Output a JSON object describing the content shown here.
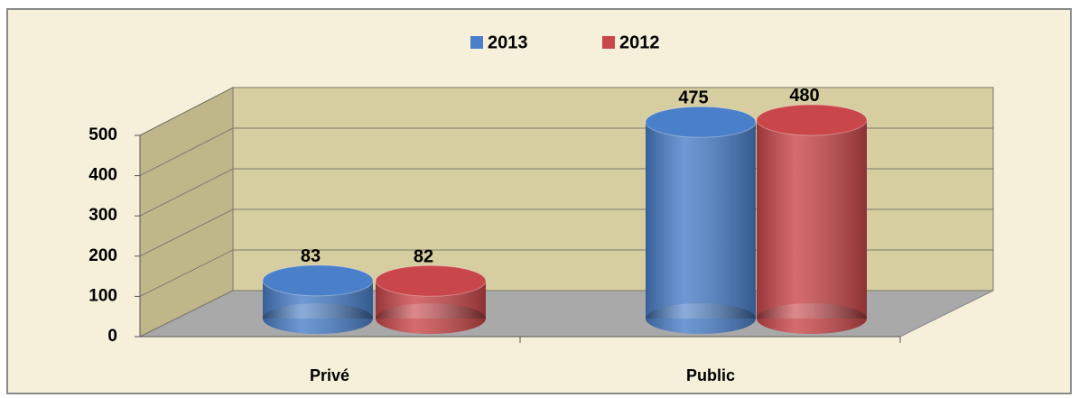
{
  "chart_data": {
    "type": "bar3d",
    "categories": [
      "Privé",
      "Public"
    ],
    "series": [
      {
        "name": "2013",
        "color": "#4a7fc9",
        "values": [
          83,
          475
        ]
      },
      {
        "name": "2012",
        "color": "#c9474a",
        "values": [
          82,
          480
        ]
      }
    ],
    "ylim": [
      0,
      500
    ],
    "yticks": [
      0,
      100,
      200,
      300,
      400,
      500
    ],
    "grid": true,
    "legend": "top"
  }
}
